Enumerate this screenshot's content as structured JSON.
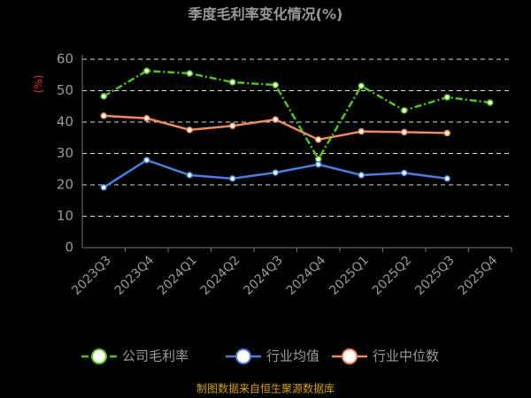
{
  "chart_data": {
    "type": "line",
    "title": "季度毛利率变化情况(%)",
    "y_label": "(%)",
    "source": "制图数据来自恒生聚源数据库",
    "categories": [
      "2023Q3",
      "2023Q4",
      "2024Q1",
      "2024Q2",
      "2024Q3",
      "2024Q4",
      "2025Q1",
      "2025Q2",
      "2025Q3",
      "2025Q4"
    ],
    "series": [
      {
        "name": "公司毛利率",
        "color": "#52c41a",
        "values": [
          48.2,
          56.3,
          55.5,
          52.7,
          51.8,
          28.2,
          51.5,
          43.7,
          47.9,
          46.2
        ]
      },
      {
        "name": "行业均值",
        "color": "#4a7fe0",
        "values": [
          19.2,
          27.9,
          23.1,
          22.0,
          23.9,
          26.5,
          23.1,
          23.8,
          22.0,
          null
        ]
      },
      {
        "name": "行业中位数",
        "color": "#f08a5d",
        "values": [
          42.0,
          41.2,
          37.5,
          38.8,
          40.8,
          34.4,
          37.0,
          36.8,
          36.5,
          null
        ]
      }
    ],
    "ylim": [
      0,
      60
    ],
    "yticks": [
      0,
      10,
      20,
      30,
      40,
      50,
      60
    ],
    "grid": true
  }
}
